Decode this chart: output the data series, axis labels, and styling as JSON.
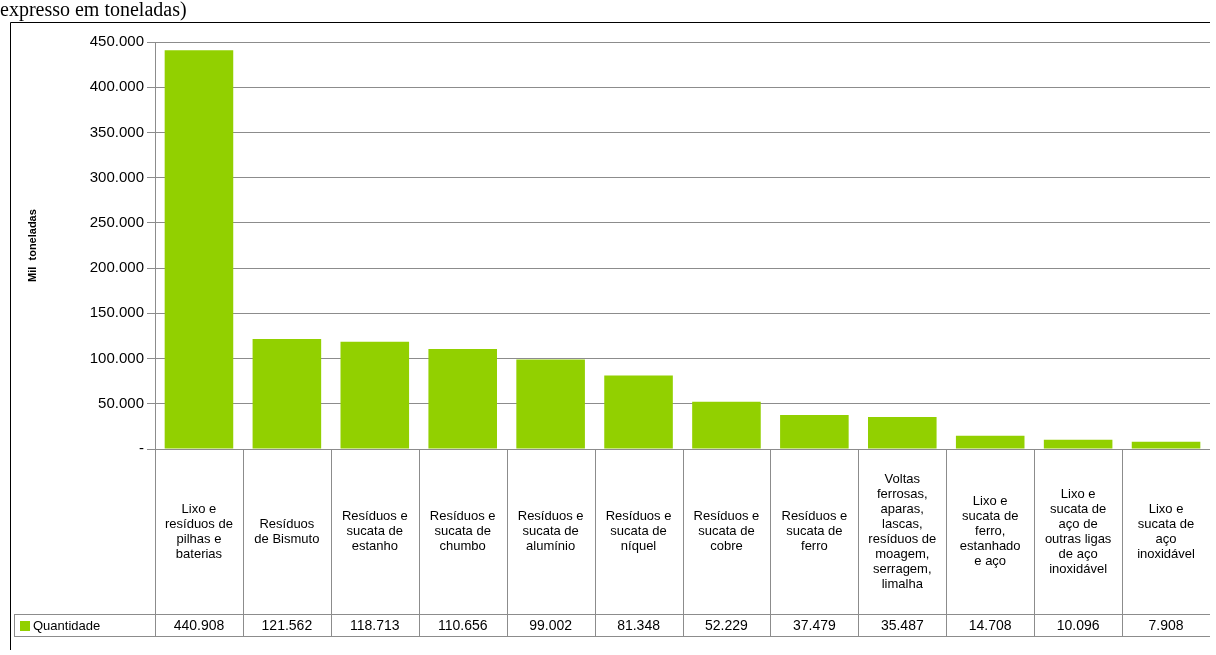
{
  "chart_data": {
    "type": "bar",
    "title": "expresso em toneladas)",
    "ylabel": "Mil  toneladas",
    "categories": [
      "Lixo e resíduos de pilhas e baterias",
      "Resíduos de Bismuto",
      "Resíduos e sucata de estanho",
      "Resíduos e sucata de chumbo",
      "Resíduos e sucata de alumínio",
      "Resíduos e sucata de níquel",
      "Resíduos e sucata de cobre",
      "Resíduos e sucata de ferro",
      "Voltas ferrosas, aparas, lascas, resíduos de moagem, serragem, limalha",
      "Lixo e sucata de ferro, estanhado e aço",
      "Lixo e sucata de aço de outras ligas de aço inoxidável",
      "Lixo e sucata de aço inoxidável"
    ],
    "series": [
      {
        "name": "Quantidade",
        "color": "#92d000",
        "values": [
          440908,
          121562,
          118713,
          110656,
          99002,
          81348,
          52229,
          37479,
          35487,
          14708,
          10096,
          7908
        ],
        "value_labels": [
          "440.908",
          "121.562",
          "118.713",
          "110.656",
          "99.002",
          "81.348",
          "52.229",
          "37.479",
          "35.487",
          "14.708",
          "10.096",
          "7.908"
        ]
      }
    ],
    "ylim": [
      0,
      450000
    ],
    "yticks": [
      {
        "value": 0,
        "label": "-"
      },
      {
        "value": 50000,
        "label": "50.000"
      },
      {
        "value": 100000,
        "label": "100.000"
      },
      {
        "value": 150000,
        "label": "150.000"
      },
      {
        "value": 200000,
        "label": "200.000"
      },
      {
        "value": 250000,
        "label": "250.000"
      },
      {
        "value": 300000,
        "label": "300.000"
      },
      {
        "value": 350000,
        "label": "350.000"
      },
      {
        "value": 400000,
        "label": "400.000"
      },
      {
        "value": 450000,
        "label": "450.000"
      }
    ],
    "grid": "y",
    "legend": "bottom"
  }
}
